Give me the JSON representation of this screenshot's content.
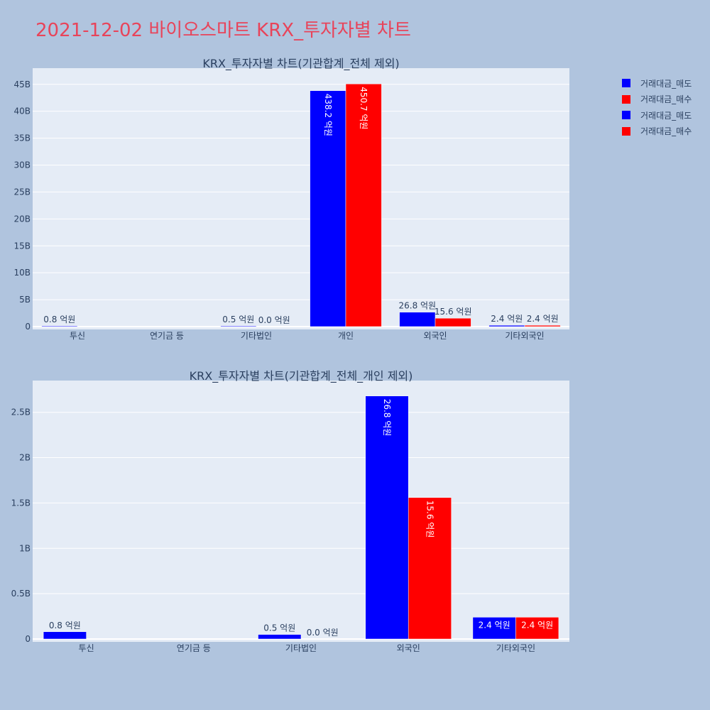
{
  "page": {
    "title": "2021-12-02 바이오스마트 KRX_투자자별 차트"
  },
  "colors": {
    "sell": "#0000ff",
    "buy": "#ff0000",
    "plot_bg": "#e5ecf6",
    "page_bg": "#b0c4de",
    "text": "#2a3f5f",
    "title": "#e8445a"
  },
  "legend": [
    {
      "label": "거래대금_매도",
      "color": "#0000ff"
    },
    {
      "label": "거래대금_매수",
      "color": "#ff0000"
    },
    {
      "label": "거래대금_매도",
      "color": "#0000ff"
    },
    {
      "label": "거래대금_매수",
      "color": "#ff0000"
    }
  ],
  "chart_data": [
    {
      "type": "bar",
      "title": "KRX_투자자별 차트(기관합계_전체 제외)",
      "categories": [
        "투신",
        "연기금 등",
        "기타법인",
        "개인",
        "외국인",
        "기타외국인"
      ],
      "ylim": [
        0,
        48
      ],
      "ytick_values": [
        0,
        5,
        10,
        15,
        20,
        25,
        30,
        35,
        40,
        45
      ],
      "ytick_labels": [
        "0",
        "5B",
        "10B",
        "15B",
        "20B",
        "25B",
        "30B",
        "35B",
        "40B",
        "45B"
      ],
      "series": [
        {
          "name": "거래대금_매도",
          "values": [
            0.08,
            null,
            0.05,
            43.82,
            2.68,
            0.24
          ],
          "labels": [
            "0.8 억원",
            "",
            "0.5 억원",
            "438.2 억원",
            "26.8 억원",
            "2.4 억원"
          ]
        },
        {
          "name": "거래대금_매수",
          "values": [
            null,
            null,
            0.0,
            45.07,
            1.56,
            0.24
          ],
          "labels": [
            "",
            "",
            "0.0 억원",
            "450.7 억원",
            "15.6 억원",
            "2.4 억원"
          ]
        }
      ],
      "grid": true
    },
    {
      "type": "bar",
      "title": "KRX_투자자별 차트(기관합계_전체_개인 제외)",
      "categories": [
        "투신",
        "연기금 등",
        "기타법인",
        "외국인",
        "기타외국인"
      ],
      "ylim": [
        0,
        2.85
      ],
      "ytick_values": [
        0,
        0.5,
        1,
        1.5,
        2,
        2.5
      ],
      "ytick_labels": [
        "0",
        "0.5B",
        "1B",
        "1.5B",
        "2B",
        "2.5B"
      ],
      "series": [
        {
          "name": "거래대금_매도",
          "values": [
            0.08,
            null,
            0.05,
            2.68,
            0.24
          ],
          "labels": [
            "0.8 억원",
            "",
            "0.5 억원",
            "26.8 억원",
            "2.4 억원"
          ]
        },
        {
          "name": "거래대금_매수",
          "values": [
            null,
            null,
            0.0,
            1.56,
            0.24
          ],
          "labels": [
            "",
            "",
            "0.0 억원",
            "15.6 억원",
            "2.4 억원"
          ]
        }
      ],
      "grid": true
    }
  ]
}
